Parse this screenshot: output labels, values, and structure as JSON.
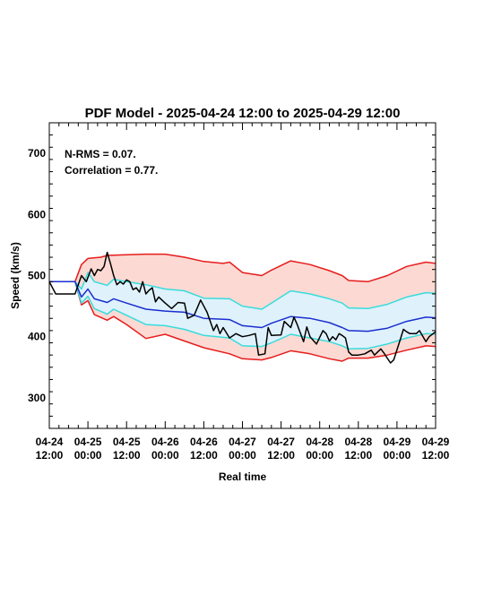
{
  "chart_data": {
    "type": "line",
    "title": "PDF Model - 2025-04-24 12:00 to 2025-04-29 12:00",
    "xlabel": "Real time",
    "ylabel": "Speed (km/s)",
    "xlim": [
      "2025-04-24T12:00",
      "2025-04-29T12:00"
    ],
    "ylim": [
      250,
      750
    ],
    "y_ticks": [
      300,
      400,
      500,
      600,
      700
    ],
    "x_ticks": [
      {
        "t": "2025-04-24T12:00",
        "line1": "04-24",
        "line2": "12:00"
      },
      {
        "t": "2025-04-25T00:00",
        "line1": "04-25",
        "line2": "00:00"
      },
      {
        "t": "2025-04-25T12:00",
        "line1": "04-25",
        "line2": "12:00"
      },
      {
        "t": "2025-04-26T00:00",
        "line1": "04-26",
        "line2": "00:00"
      },
      {
        "t": "2025-04-26T12:00",
        "line1": "04-26",
        "line2": "12:00"
      },
      {
        "t": "2025-04-27T00:00",
        "line1": "04-27",
        "line2": "00:00"
      },
      {
        "t": "2025-04-27T12:00",
        "line1": "04-27",
        "line2": "12:00"
      },
      {
        "t": "2025-04-28T00:00",
        "line1": "04-28",
        "line2": "00:00"
      },
      {
        "t": "2025-04-28T12:00",
        "line1": "04-28",
        "line2": "12:00"
      },
      {
        "t": "2025-04-29T00:00",
        "line1": "04-29",
        "line2": "00:00"
      },
      {
        "t": "2025-04-29T12:00",
        "line1": "04-29",
        "line2": "12:00"
      }
    ],
    "annotations": [
      "N-RMS = 0.07.",
      "Correlation = 0.77."
    ],
    "grid": false,
    "colors": {
      "observed": "#000000",
      "median": "#1a2fcf",
      "inner_band": "#38dcdc",
      "outer_band": "#e61c1c",
      "inner_fill": "#dff1fb",
      "outer_fill": "#fcd9d3"
    },
    "series": [
      {
        "role": "outer_upper",
        "points": [
          [
            "2025-04-24T12:00",
            490
          ],
          [
            "2025-04-24T20:00",
            490
          ],
          [
            "2025-04-24T22:00",
            518
          ],
          [
            "2025-04-25T00:00",
            528
          ],
          [
            "2025-04-25T04:00",
            530
          ],
          [
            "2025-04-25T06:00",
            533
          ],
          [
            "2025-04-25T12:00",
            534
          ],
          [
            "2025-04-25T18:00",
            535
          ],
          [
            "2025-04-26T00:00",
            535
          ],
          [
            "2025-04-26T06:00",
            530
          ],
          [
            "2025-04-26T12:00",
            523
          ],
          [
            "2025-04-26T18:00",
            520
          ],
          [
            "2025-04-26T20:00",
            522
          ],
          [
            "2025-04-27T00:00",
            505
          ],
          [
            "2025-04-27T06:00",
            500
          ],
          [
            "2025-04-27T09:00",
            509
          ],
          [
            "2025-04-27T15:00",
            524
          ],
          [
            "2025-04-27T21:00",
            518
          ],
          [
            "2025-04-28T03:00",
            508
          ],
          [
            "2025-04-28T07:00",
            500
          ],
          [
            "2025-04-28T09:00",
            492
          ],
          [
            "2025-04-28T15:00",
            490
          ],
          [
            "2025-04-28T21:00",
            500
          ],
          [
            "2025-04-29T03:00",
            515
          ],
          [
            "2025-04-29T09:00",
            522
          ],
          [
            "2025-04-29T12:00",
            520
          ]
        ]
      },
      {
        "role": "inner_upper",
        "points": [
          [
            "2025-04-24T12:00",
            490
          ],
          [
            "2025-04-24T20:00",
            490
          ],
          [
            "2025-04-24T22:00",
            478
          ],
          [
            "2025-04-25T00:00",
            505
          ],
          [
            "2025-04-25T02:00",
            490
          ],
          [
            "2025-04-25T06:00",
            484
          ],
          [
            "2025-04-25T08:00",
            494
          ],
          [
            "2025-04-25T12:00",
            490
          ],
          [
            "2025-04-25T18:00",
            485
          ],
          [
            "2025-04-26T00:00",
            478
          ],
          [
            "2025-04-26T06:00",
            475
          ],
          [
            "2025-04-26T12:00",
            463
          ],
          [
            "2025-04-26T20:00",
            462
          ],
          [
            "2025-04-27T00:00",
            450
          ],
          [
            "2025-04-27T06:00",
            445
          ],
          [
            "2025-04-27T09:00",
            455
          ],
          [
            "2025-04-27T15:00",
            475
          ],
          [
            "2025-04-27T21:00",
            470
          ],
          [
            "2025-04-28T03:00",
            462
          ],
          [
            "2025-04-28T07:00",
            455
          ],
          [
            "2025-04-28T09:00",
            447
          ],
          [
            "2025-04-28T15:00",
            446
          ],
          [
            "2025-04-28T21:00",
            453
          ],
          [
            "2025-04-29T03:00",
            465
          ],
          [
            "2025-04-29T09:00",
            472
          ],
          [
            "2025-04-29T12:00",
            471
          ]
        ]
      },
      {
        "role": "median",
        "points": [
          [
            "2025-04-24T12:00",
            490
          ],
          [
            "2025-04-24T20:00",
            490
          ],
          [
            "2025-04-24T22:00",
            465
          ],
          [
            "2025-04-25T00:00",
            478
          ],
          [
            "2025-04-25T02:00",
            462
          ],
          [
            "2025-04-25T06:00",
            456
          ],
          [
            "2025-04-25T08:00",
            462
          ],
          [
            "2025-04-25T12:00",
            455
          ],
          [
            "2025-04-25T18:00",
            445
          ],
          [
            "2025-04-26T00:00",
            442
          ],
          [
            "2025-04-26T06:00",
            440
          ],
          [
            "2025-04-26T12:00",
            430
          ],
          [
            "2025-04-26T20:00",
            428
          ],
          [
            "2025-04-27T00:00",
            418
          ],
          [
            "2025-04-27T06:00",
            415
          ],
          [
            "2025-04-27T09:00",
            422
          ],
          [
            "2025-04-27T15:00",
            433
          ],
          [
            "2025-04-27T21:00",
            430
          ],
          [
            "2025-04-28T03:00",
            423
          ],
          [
            "2025-04-28T07:00",
            415
          ],
          [
            "2025-04-28T09:00",
            410
          ],
          [
            "2025-04-28T15:00",
            409
          ],
          [
            "2025-04-28T21:00",
            414
          ],
          [
            "2025-04-29T03:00",
            425
          ],
          [
            "2025-04-29T09:00",
            432
          ],
          [
            "2025-04-29T12:00",
            431
          ]
        ]
      },
      {
        "role": "inner_lower",
        "points": [
          [
            "2025-04-24T12:00",
            490
          ],
          [
            "2025-04-24T20:00",
            490
          ],
          [
            "2025-04-24T22:00",
            455
          ],
          [
            "2025-04-25T00:00",
            466
          ],
          [
            "2025-04-25T02:00",
            446
          ],
          [
            "2025-04-25T06:00",
            437
          ],
          [
            "2025-04-25T08:00",
            445
          ],
          [
            "2025-04-25T12:00",
            435
          ],
          [
            "2025-04-25T18:00",
            420
          ],
          [
            "2025-04-26T00:00",
            418
          ],
          [
            "2025-04-26T06:00",
            412
          ],
          [
            "2025-04-26T12:00",
            402
          ],
          [
            "2025-04-26T20:00",
            398
          ],
          [
            "2025-04-27T00:00",
            385
          ],
          [
            "2025-04-27T06:00",
            384
          ],
          [
            "2025-04-27T09:00",
            390
          ],
          [
            "2025-04-27T15:00",
            404
          ],
          [
            "2025-04-27T21:00",
            398
          ],
          [
            "2025-04-28T03:00",
            392
          ],
          [
            "2025-04-28T07:00",
            385
          ],
          [
            "2025-04-28T09:00",
            380
          ],
          [
            "2025-04-28T15:00",
            381
          ],
          [
            "2025-04-28T21:00",
            388
          ],
          [
            "2025-04-29T03:00",
            398
          ],
          [
            "2025-04-29T09:00",
            405
          ],
          [
            "2025-04-29T12:00",
            404
          ]
        ]
      },
      {
        "role": "outer_lower",
        "points": [
          [
            "2025-04-24T12:00",
            490
          ],
          [
            "2025-04-24T20:00",
            490
          ],
          [
            "2025-04-24T22:00",
            452
          ],
          [
            "2025-04-25T00:00",
            459
          ],
          [
            "2025-04-25T02:00",
            436
          ],
          [
            "2025-04-25T06:00",
            427
          ],
          [
            "2025-04-25T08:00",
            433
          ],
          [
            "2025-04-25T12:00",
            420
          ],
          [
            "2025-04-25T18:00",
            397
          ],
          [
            "2025-04-26T00:00",
            404
          ],
          [
            "2025-04-26T06:00",
            393
          ],
          [
            "2025-04-26T12:00",
            382
          ],
          [
            "2025-04-26T20:00",
            372
          ],
          [
            "2025-04-27T00:00",
            364
          ],
          [
            "2025-04-27T06:00",
            362
          ],
          [
            "2025-04-27T09:00",
            366
          ],
          [
            "2025-04-27T15:00",
            377
          ],
          [
            "2025-04-27T21:00",
            372
          ],
          [
            "2025-04-28T03:00",
            364
          ],
          [
            "2025-04-28T07:00",
            360
          ],
          [
            "2025-04-28T09:00",
            365
          ],
          [
            "2025-04-28T15:00",
            365
          ],
          [
            "2025-04-28T21:00",
            370
          ],
          [
            "2025-04-29T03:00",
            378
          ],
          [
            "2025-04-29T09:00",
            385
          ],
          [
            "2025-04-29T12:00",
            384
          ]
        ]
      },
      {
        "role": "observed",
        "points": [
          [
            "2025-04-24T12:00",
            490
          ],
          [
            "2025-04-24T14:00",
            470
          ],
          [
            "2025-04-24T20:00",
            470
          ],
          [
            "2025-04-24T22:00",
            500
          ],
          [
            "2025-04-24T23:30",
            490
          ],
          [
            "2025-04-25T01:00",
            511
          ],
          [
            "2025-04-25T02:00",
            500
          ],
          [
            "2025-04-25T03:00",
            510
          ],
          [
            "2025-04-25T04:00",
            508
          ],
          [
            "2025-04-25T05:00",
            515
          ],
          [
            "2025-04-25T06:00",
            538
          ],
          [
            "2025-04-25T07:00",
            520
          ],
          [
            "2025-04-25T08:00",
            500
          ],
          [
            "2025-04-25T09:00",
            485
          ],
          [
            "2025-04-25T10:00",
            490
          ],
          [
            "2025-04-25T11:00",
            486
          ],
          [
            "2025-04-25T12:00",
            493
          ],
          [
            "2025-04-25T13:00",
            490
          ],
          [
            "2025-04-25T14:00",
            477
          ],
          [
            "2025-04-25T15:00",
            480
          ],
          [
            "2025-04-25T16:00",
            473
          ],
          [
            "2025-04-25T17:00",
            490
          ],
          [
            "2025-04-25T18:00",
            470
          ],
          [
            "2025-04-25T19:00",
            476
          ],
          [
            "2025-04-25T20:00",
            480
          ],
          [
            "2025-04-25T21:00",
            457
          ],
          [
            "2025-04-25T22:00",
            465
          ],
          [
            "2025-04-26T00:00",
            455
          ],
          [
            "2025-04-26T02:00",
            446
          ],
          [
            "2025-04-26T04:00",
            456
          ],
          [
            "2025-04-26T06:00",
            455
          ],
          [
            "2025-04-26T07:00",
            430
          ],
          [
            "2025-04-26T09:00",
            435
          ],
          [
            "2025-04-26T11:00",
            460
          ],
          [
            "2025-04-26T13:00",
            440
          ],
          [
            "2025-04-26T15:00",
            410
          ],
          [
            "2025-04-26T16:00",
            420
          ],
          [
            "2025-04-26T17:00",
            405
          ],
          [
            "2025-04-26T18:00",
            415
          ],
          [
            "2025-04-26T20:00",
            398
          ],
          [
            "2025-04-26T22:00",
            405
          ],
          [
            "2025-04-27T00:00",
            400
          ],
          [
            "2025-04-27T02:00",
            402
          ],
          [
            "2025-04-27T04:00",
            405
          ],
          [
            "2025-04-27T05:00",
            370
          ],
          [
            "2025-04-27T07:00",
            372
          ],
          [
            "2025-04-27T08:00",
            415
          ],
          [
            "2025-04-27T09:00",
            402
          ],
          [
            "2025-04-27T12:00",
            403
          ],
          [
            "2025-04-27T13:00",
            425
          ],
          [
            "2025-04-27T14:00",
            420
          ],
          [
            "2025-04-27T15:00",
            415
          ],
          [
            "2025-04-27T16:00",
            432
          ],
          [
            "2025-04-27T17:00",
            420
          ],
          [
            "2025-04-27T19:00",
            392
          ],
          [
            "2025-04-27T20:00",
            416
          ],
          [
            "2025-04-27T21:00",
            400
          ],
          [
            "2025-04-27T23:00",
            388
          ],
          [
            "2025-04-28T01:00",
            410
          ],
          [
            "2025-04-28T02:00",
            405
          ],
          [
            "2025-04-28T03:00",
            393
          ],
          [
            "2025-04-28T04:00",
            400
          ],
          [
            "2025-04-28T05:00",
            395
          ],
          [
            "2025-04-28T06:00",
            405
          ],
          [
            "2025-04-28T07:00",
            402
          ],
          [
            "2025-04-28T08:00",
            398
          ],
          [
            "2025-04-28T09:00",
            375
          ],
          [
            "2025-04-28T10:00",
            370
          ],
          [
            "2025-04-28T12:00",
            370
          ],
          [
            "2025-04-28T14:00",
            372
          ],
          [
            "2025-04-28T16:00",
            378
          ],
          [
            "2025-04-28T17:00",
            370
          ],
          [
            "2025-04-28T19:00",
            380
          ],
          [
            "2025-04-28T20:00",
            373
          ],
          [
            "2025-04-28T21:00",
            365
          ],
          [
            "2025-04-28T22:00",
            357
          ],
          [
            "2025-04-28T23:00",
            362
          ],
          [
            "2025-04-29T01:00",
            395
          ],
          [
            "2025-04-29T02:00",
            412
          ],
          [
            "2025-04-29T03:00",
            408
          ],
          [
            "2025-04-29T04:00",
            405
          ],
          [
            "2025-04-29T06:00",
            405
          ],
          [
            "2025-04-29T07:00",
            410
          ],
          [
            "2025-04-29T09:00",
            392
          ],
          [
            "2025-04-29T10:00",
            400
          ],
          [
            "2025-04-29T12:00",
            408
          ]
        ]
      }
    ]
  }
}
